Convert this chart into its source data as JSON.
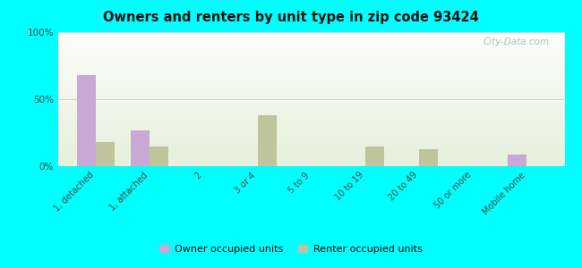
{
  "title": "Owners and renters by unit type in zip code 93424",
  "categories": [
    "1, detached",
    "1, attached",
    "2",
    "3 or 4",
    "5 to 9",
    "10 to 19",
    "20 to 49",
    "50 or more",
    "Mobile home"
  ],
  "owner_values": [
    68,
    27,
    0,
    0,
    0,
    0,
    0,
    0,
    9
  ],
  "renter_values": [
    18,
    15,
    0,
    38,
    0,
    15,
    13,
    0,
    0
  ],
  "owner_color": "#c9a8d4",
  "renter_color": "#bfc49a",
  "outer_bg": "#00ffff",
  "ylim": [
    0,
    100
  ],
  "yticks": [
    0,
    50,
    100
  ],
  "ytick_labels": [
    "0%",
    "50%",
    "100%"
  ],
  "bar_width": 0.35,
  "legend_owner": "Owner occupied units",
  "legend_renter": "Renter occupied units",
  "watermark": "City-Data.com",
  "bg_top_left": "#d8ede4",
  "bg_top_right": "#e8f5f0",
  "bg_bottom": "#e8f0d8"
}
